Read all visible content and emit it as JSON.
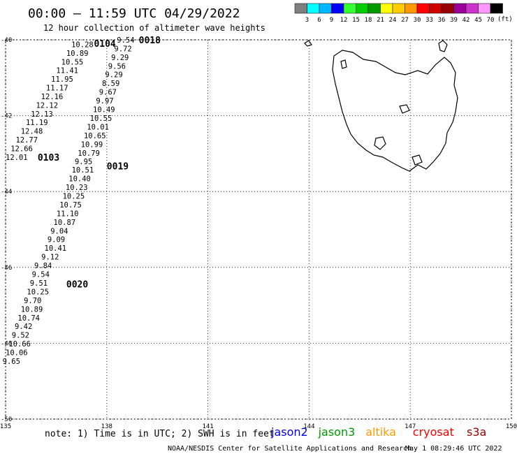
{
  "header": {
    "title": "00:00 – 11:59 UTC 04/29/2022",
    "subtitle": "12 hour collection of altimeter wave heights"
  },
  "color_scale": {
    "labels": [
      "3",
      "6",
      "9",
      "12",
      "15",
      "18",
      "21",
      "24",
      "27",
      "30",
      "33",
      "36",
      "39",
      "42",
      "45",
      "70"
    ],
    "unit": "(ft)",
    "colors": [
      "#7f7f7f",
      "#00ffff",
      "#00b4ff",
      "#0000ff",
      "#33ff33",
      "#00cc00",
      "#009900",
      "#ffff00",
      "#ffcc00",
      "#ff9900",
      "#ff0000",
      "#cc0000",
      "#990000",
      "#990099",
      "#cc33cc",
      "#ff99ff",
      "#000000"
    ]
  },
  "axes": {
    "lat_labels": [
      "-40",
      "-42",
      "-44",
      "-46",
      "-48",
      "-50"
    ],
    "lon_labels": [
      "135",
      "138",
      "141",
      "144",
      "147",
      "150"
    ],
    "lat_values": [
      -40,
      -42,
      -44,
      -46,
      -48,
      -50
    ],
    "lon_values": [
      135,
      138,
      141,
      144,
      147,
      150
    ],
    "lon_range": [
      135,
      150
    ],
    "lat_range": [
      -40,
      -50
    ]
  },
  "passes": [
    {
      "id": "0104",
      "satellite": "jason3",
      "color": "#33dd33",
      "label": {
        "text": "0104",
        "lon": 137.62,
        "lat": -40.09
      },
      "obs": [
        {
          "v": "10.28",
          "lon": 136.95,
          "lat": -40.12,
          "c": "#0000cc"
        },
        {
          "v": "10.89",
          "lon": 136.8,
          "lat": -40.35,
          "c": "#0000cc"
        },
        {
          "v": "10.55",
          "lon": 136.65,
          "lat": -40.58,
          "c": "#0000cc"
        },
        {
          "v": "11.41",
          "lon": 136.5,
          "lat": -40.8,
          "c": "#0000cc"
        },
        {
          "v": "11.95",
          "lon": 136.35,
          "lat": -41.03,
          "c": "#0000cc"
        },
        {
          "v": "11.17",
          "lon": 136.2,
          "lat": -41.26,
          "c": "#0000cc"
        },
        {
          "v": "12.16",
          "lon": 136.05,
          "lat": -41.49,
          "c": "#33ff33"
        },
        {
          "v": "12.12",
          "lon": 135.9,
          "lat": -41.72,
          "c": "#33ff33"
        },
        {
          "v": "12.13",
          "lon": 135.75,
          "lat": -41.95,
          "c": "#33ff33"
        },
        {
          "v": "11.19",
          "lon": 135.6,
          "lat": -42.17,
          "c": "#0000cc"
        },
        {
          "v": "12.48",
          "lon": 135.45,
          "lat": -42.4,
          "c": "#33ff33"
        },
        {
          "v": "12.77",
          "lon": 135.3,
          "lat": -42.63,
          "c": "#33ff33"
        },
        {
          "v": "12.66",
          "lon": 135.15,
          "lat": -42.86,
          "c": "#33ff33"
        },
        {
          "v": "12.01",
          "lon": 135.0,
          "lat": -43.09,
          "c": "#33ff33"
        }
      ]
    },
    {
      "id": "0103",
      "satellite": "jason3",
      "color": "#009900",
      "label": {
        "text": "0103",
        "lon": 135.95,
        "lat": -43.09
      },
      "obs": []
    },
    {
      "id": "0018",
      "satellite": "cryosat",
      "color": "#990000",
      "label": {
        "text": "0018",
        "lon": 138.95,
        "lat": -40.0
      },
      "obs": []
    },
    {
      "id": "0019",
      "satellite": "cryosat",
      "color": "#990000",
      "label": {
        "text": "0019",
        "lon": 138.0,
        "lat": -43.32
      },
      "obs": [
        {
          "v": "9.54",
          "lon": 138.3,
          "lat": -40.0,
          "c": "#0000cc"
        },
        {
          "v": "9.72",
          "lon": 138.22,
          "lat": -40.23,
          "c": "#0000cc"
        },
        {
          "v": "9.29",
          "lon": 138.13,
          "lat": -40.46,
          "c": "#0000cc"
        },
        {
          "v": "9.56",
          "lon": 138.04,
          "lat": -40.69,
          "c": "#0000cc"
        },
        {
          "v": "9.29",
          "lon": 137.95,
          "lat": -40.91,
          "c": "#0000cc"
        },
        {
          "v": "8.59",
          "lon": 137.86,
          "lat": -41.14,
          "c": "#00aaff"
        },
        {
          "v": "9.67",
          "lon": 137.77,
          "lat": -41.37,
          "c": "#0000cc"
        },
        {
          "v": "9.97",
          "lon": 137.68,
          "lat": -41.6,
          "c": "#0000cc"
        },
        {
          "v": "10.49",
          "lon": 137.59,
          "lat": -41.83,
          "c": "#0000cc"
        },
        {
          "v": "10.55",
          "lon": 137.5,
          "lat": -42.06,
          "c": "#0000cc"
        },
        {
          "v": "10.01",
          "lon": 137.41,
          "lat": -42.29,
          "c": "#0000cc"
        },
        {
          "v": "10.65",
          "lon": 137.32,
          "lat": -42.52,
          "c": "#0000cc"
        },
        {
          "v": "10.99",
          "lon": 137.23,
          "lat": -42.75,
          "c": "#0000cc"
        },
        {
          "v": "10.79",
          "lon": 137.14,
          "lat": -42.98,
          "c": "#0000cc"
        },
        {
          "v": "9.95",
          "lon": 137.05,
          "lat": -43.2,
          "c": "#0000cc"
        },
        {
          "v": "10.51",
          "lon": 136.96,
          "lat": -43.43,
          "c": "#0000cc"
        },
        {
          "v": "10.40",
          "lon": 136.87,
          "lat": -43.66,
          "c": "#0000cc"
        },
        {
          "v": "10.23",
          "lon": 136.78,
          "lat": -43.89,
          "c": "#0000cc"
        },
        {
          "v": "10.25",
          "lon": 136.69,
          "lat": -44.12,
          "c": "#0000cc"
        },
        {
          "v": "10.75",
          "lon": 136.6,
          "lat": -44.35,
          "c": "#0000cc"
        },
        {
          "v": "11.10",
          "lon": 136.51,
          "lat": -44.58,
          "c": "#0000cc"
        },
        {
          "v": "10.87",
          "lon": 136.42,
          "lat": -44.81,
          "c": "#0000cc"
        },
        {
          "v": "9.04",
          "lon": 136.33,
          "lat": -45.04,
          "c": "#0000cc"
        },
        {
          "v": "9.09",
          "lon": 136.24,
          "lat": -45.26,
          "c": "#0000cc"
        },
        {
          "v": "10.41",
          "lon": 136.15,
          "lat": -45.49,
          "c": "#0000cc"
        },
        {
          "v": "9.12",
          "lon": 136.06,
          "lat": -45.72,
          "c": "#0000cc"
        }
      ]
    },
    {
      "id": "0020",
      "satellite": "cryosat",
      "color": "#990000",
      "label": {
        "text": "0020",
        "lon": 136.8,
        "lat": -46.44
      },
      "obs": [
        {
          "v": "9.84",
          "lon": 135.85,
          "lat": -45.95,
          "c": "#0000cc"
        },
        {
          "v": "9.54",
          "lon": 135.78,
          "lat": -46.18,
          "c": "#0000cc"
        },
        {
          "v": "9.51",
          "lon": 135.72,
          "lat": -46.41,
          "c": "#0000cc"
        },
        {
          "v": "10.25",
          "lon": 135.63,
          "lat": -46.64,
          "c": "#0000cc"
        },
        {
          "v": "9.70",
          "lon": 135.54,
          "lat": -46.87,
          "c": "#0000cc"
        },
        {
          "v": "10.89",
          "lon": 135.45,
          "lat": -47.1,
          "c": "#0000cc"
        },
        {
          "v": "10.74",
          "lon": 135.36,
          "lat": -47.33,
          "c": "#0000cc"
        },
        {
          "v": "9.42",
          "lon": 135.27,
          "lat": -47.55,
          "c": "#0000cc"
        },
        {
          "v": "9.52",
          "lon": 135.18,
          "lat": -47.78,
          "c": "#0000cc"
        },
        {
          "v": "10.66",
          "lon": 135.09,
          "lat": -48.01,
          "c": "#0000cc"
        },
        {
          "v": "10.06",
          "lon": 135.0,
          "lat": -48.24,
          "c": "#0000cc"
        },
        {
          "v": "9.65",
          "lon": 134.91,
          "lat": -48.47,
          "c": "#0000cc"
        }
      ]
    }
  ],
  "footer": {
    "note": "note:  1) Time is in UTC;  2) SWH is in feet",
    "legend": [
      {
        "name": "jason2",
        "color": "#0000ee"
      },
      {
        "name": "jason3",
        "color": "#009900"
      },
      {
        "name": "altika",
        "color": "#ff9900"
      },
      {
        "name": "cryosat",
        "color": "#ee0000"
      },
      {
        "name": "s3a",
        "color": "#990000"
      }
    ],
    "credit": "NOAA/NESDIS Center for Satellite Applications and Research",
    "timestamp": "May  1 08:29:46 UTC 2022"
  },
  "map": {
    "land_label": "",
    "land_outline_color": "#000000"
  }
}
